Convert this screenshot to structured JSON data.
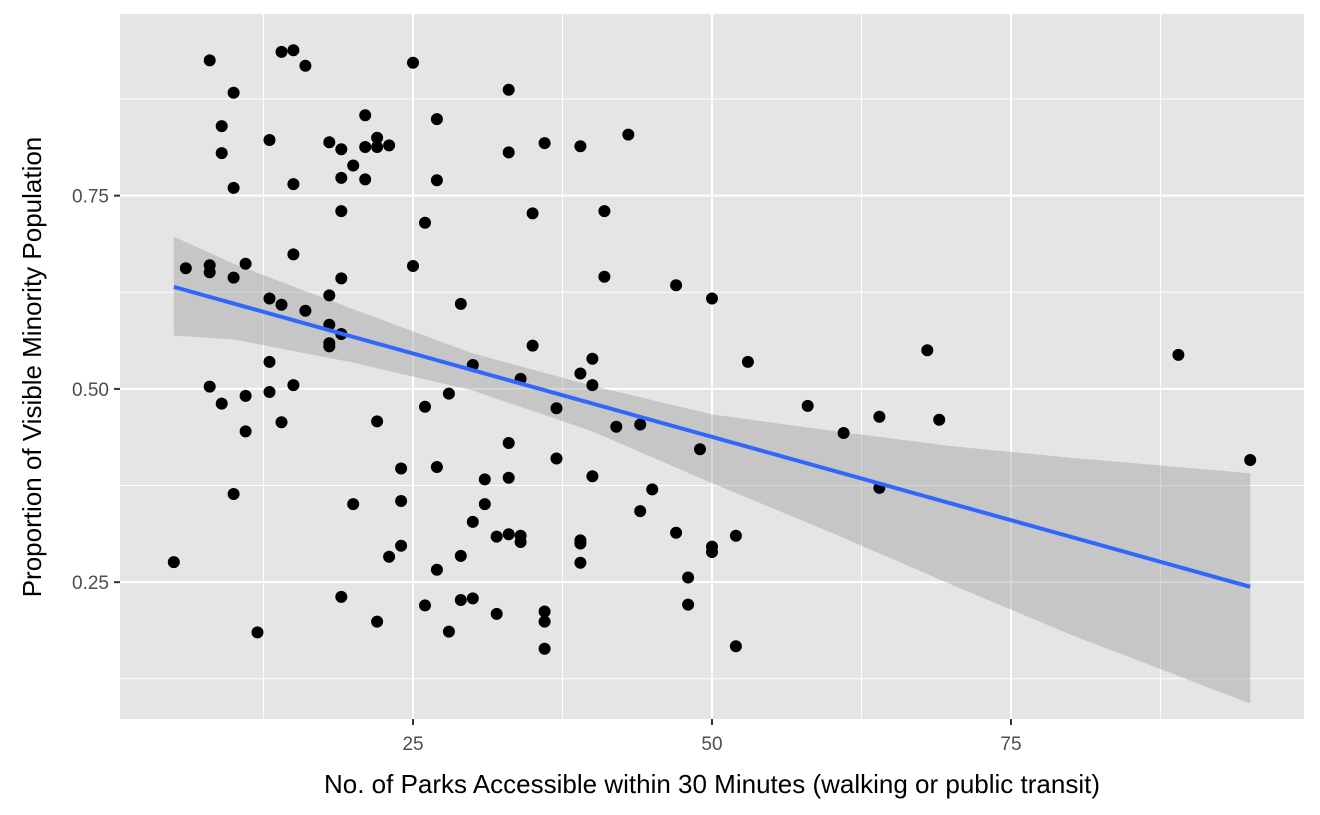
{
  "chart_data": {
    "type": "scatter",
    "title": "",
    "xlabel": "No. of Parks Accessible within 30 Minutes (walking or public transit)",
    "ylabel": "Proportion of Visible Minority Population",
    "xlim": [
      0.5,
      99.5
    ],
    "ylim": [
      0.073,
      0.985
    ],
    "x_ticks": [
      25,
      50,
      75
    ],
    "x_tick_labels": [
      "25",
      "50",
      "75"
    ],
    "x_minor": [
      12.5,
      37.5,
      62.5,
      87.5
    ],
    "y_ticks": [
      0.25,
      0.5,
      0.75
    ],
    "y_tick_labels": [
      "0.25",
      "0.50",
      "0.75"
    ],
    "y_minor": [
      0.125,
      0.375,
      0.625,
      0.875
    ],
    "grid": true,
    "colors": {
      "panel": "#e5e5e5",
      "grid": "#ffffff",
      "points": "#000000",
      "line": "#3366ff",
      "ribbon": "#999999",
      "tick_text": "#4d4d4d"
    },
    "points": [
      [
        5,
        0.276
      ],
      [
        6,
        0.656
      ],
      [
        8,
        0.925
      ],
      [
        8,
        0.66
      ],
      [
        8,
        0.651
      ],
      [
        8,
        0.503
      ],
      [
        9,
        0.84
      ],
      [
        9,
        0.805
      ],
      [
        9,
        0.481
      ],
      [
        10,
        0.883
      ],
      [
        10,
        0.76
      ],
      [
        10,
        0.644
      ],
      [
        10,
        0.364
      ],
      [
        11,
        0.662
      ],
      [
        11,
        0.491
      ],
      [
        11,
        0.445
      ],
      [
        12,
        0.185
      ],
      [
        13,
        0.822
      ],
      [
        13,
        0.617
      ],
      [
        13,
        0.535
      ],
      [
        13,
        0.496
      ],
      [
        14,
        0.936
      ],
      [
        14,
        0.609
      ],
      [
        14,
        0.457
      ],
      [
        15,
        0.938
      ],
      [
        15,
        0.765
      ],
      [
        15,
        0.674
      ],
      [
        15,
        0.505
      ],
      [
        16,
        0.918
      ],
      [
        16,
        0.601
      ],
      [
        18,
        0.819
      ],
      [
        18,
        0.621
      ],
      [
        18,
        0.583
      ],
      [
        18,
        0.559
      ],
      [
        18,
        0.555
      ],
      [
        19,
        0.81
      ],
      [
        19,
        0.773
      ],
      [
        19,
        0.73
      ],
      [
        19,
        0.643
      ],
      [
        19,
        0.571
      ],
      [
        19,
        0.231
      ],
      [
        20,
        0.789
      ],
      [
        20,
        0.351
      ],
      [
        21,
        0.854
      ],
      [
        21,
        0.813
      ],
      [
        21,
        0.771
      ],
      [
        22,
        0.825
      ],
      [
        22,
        0.813
      ],
      [
        22,
        0.458
      ],
      [
        22,
        0.199
      ],
      [
        23,
        0.815
      ],
      [
        23,
        0.283
      ],
      [
        24,
        0.397
      ],
      [
        24,
        0.355
      ],
      [
        24,
        0.297
      ],
      [
        25,
        0.922
      ],
      [
        25,
        0.659
      ],
      [
        26,
        0.715
      ],
      [
        26,
        0.477
      ],
      [
        26,
        0.22
      ],
      [
        27,
        0.849
      ],
      [
        27,
        0.77
      ],
      [
        27,
        0.399
      ],
      [
        27,
        0.266
      ],
      [
        28,
        0.494
      ],
      [
        28,
        0.186
      ],
      [
        29,
        0.61
      ],
      [
        29,
        0.284
      ],
      [
        29,
        0.227
      ],
      [
        30,
        0.531
      ],
      [
        30,
        0.328
      ],
      [
        30,
        0.229
      ],
      [
        31,
        0.383
      ],
      [
        31,
        0.351
      ],
      [
        32,
        0.309
      ],
      [
        32,
        0.209
      ],
      [
        33,
        0.887
      ],
      [
        33,
        0.806
      ],
      [
        33,
        0.43
      ],
      [
        33,
        0.385
      ],
      [
        33,
        0.312
      ],
      [
        34,
        0.513
      ],
      [
        34,
        0.31
      ],
      [
        34,
        0.302
      ],
      [
        35,
        0.727
      ],
      [
        35,
        0.556
      ],
      [
        36,
        0.818
      ],
      [
        36,
        0.212
      ],
      [
        36,
        0.199
      ],
      [
        36,
        0.164
      ],
      [
        37,
        0.475
      ],
      [
        37,
        0.41
      ],
      [
        39,
        0.814
      ],
      [
        39,
        0.52
      ],
      [
        39,
        0.304
      ],
      [
        39,
        0.3
      ],
      [
        39,
        0.275
      ],
      [
        40,
        0.539
      ],
      [
        40,
        0.505
      ],
      [
        40,
        0.387
      ],
      [
        41,
        0.73
      ],
      [
        41,
        0.645
      ],
      [
        42,
        0.451
      ],
      [
        43,
        0.829
      ],
      [
        44,
        0.454
      ],
      [
        44,
        0.342
      ],
      [
        45,
        0.37
      ],
      [
        47,
        0.634
      ],
      [
        47,
        0.314
      ],
      [
        48,
        0.256
      ],
      [
        48,
        0.221
      ],
      [
        49,
        0.422
      ],
      [
        50,
        0.617
      ],
      [
        50,
        0.296
      ],
      [
        50,
        0.289
      ],
      [
        52,
        0.31
      ],
      [
        52,
        0.167
      ],
      [
        53,
        0.535
      ],
      [
        58,
        0.478
      ],
      [
        61,
        0.443
      ],
      [
        64,
        0.464
      ],
      [
        64,
        0.372
      ],
      [
        68,
        0.55
      ],
      [
        69,
        0.46
      ],
      [
        89,
        0.544
      ],
      [
        95,
        0.408
      ]
    ],
    "trend": {
      "method": "linear",
      "x": [
        5,
        95
      ],
      "y": [
        0.632,
        0.244
      ],
      "band_lower": [
        [
          5,
          0.569
        ],
        [
          10,
          0.564
        ],
        [
          20,
          0.534
        ],
        [
          30,
          0.498
        ],
        [
          40,
          0.445
        ],
        [
          50,
          0.378
        ],
        [
          60,
          0.314
        ],
        [
          70,
          0.247
        ],
        [
          80,
          0.182
        ],
        [
          95,
          0.093
        ]
      ],
      "band_upper": [
        [
          5,
          0.697
        ],
        [
          10,
          0.662
        ],
        [
          20,
          0.603
        ],
        [
          30,
          0.546
        ],
        [
          40,
          0.504
        ],
        [
          50,
          0.467
        ],
        [
          60,
          0.446
        ],
        [
          70,
          0.426
        ],
        [
          80,
          0.411
        ],
        [
          95,
          0.391
        ]
      ]
    }
  }
}
